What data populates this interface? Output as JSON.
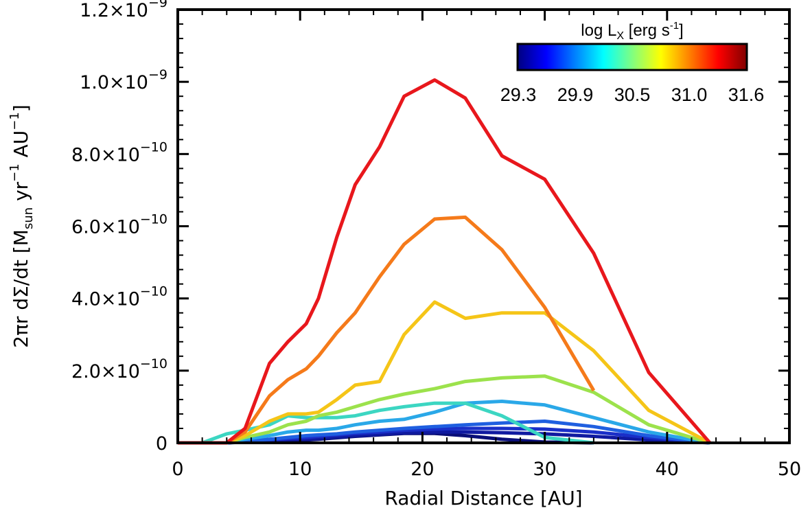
{
  "chart_data": {
    "type": "line",
    "xlabel": "Radial Distance [AU]",
    "ylabel": {
      "prefix": "2πr dΣ/dt [M",
      "sub": "sun",
      "mid": " yr",
      "sup1": "−1",
      "mid2": " AU",
      "sup2": "−1",
      "suffix": "]"
    },
    "xlim": [
      0,
      50
    ],
    "ylim": [
      0,
      1.2e-09
    ],
    "x_ticks": [
      {
        "value": 0,
        "label": "0"
      },
      {
        "value": 10,
        "label": "10"
      },
      {
        "value": 20,
        "label": "20"
      },
      {
        "value": 30,
        "label": "30"
      },
      {
        "value": 40,
        "label": "40"
      },
      {
        "value": 50,
        "label": "50"
      }
    ],
    "y_ticks": [
      {
        "value": 0,
        "mant": "0",
        "exp": ""
      },
      {
        "value": 2e-10,
        "mant": "2.0×10",
        "exp": "−10"
      },
      {
        "value": 4e-10,
        "mant": "4.0×10",
        "exp": "−10"
      },
      {
        "value": 6e-10,
        "mant": "6.0×10",
        "exp": "−10"
      },
      {
        "value": 8e-10,
        "mant": "8.0×10",
        "exp": "−10"
      },
      {
        "value": 1e-09,
        "mant": "1.0×10",
        "exp": "−9"
      },
      {
        "value": 1.2e-09,
        "mant": "1.2×10",
        "exp": "−9"
      }
    ],
    "colorbar": {
      "title_prefix": "log L",
      "title_sub": "X",
      "title_suffix": " [erg s",
      "title_sup": "-1",
      "title_end": "]",
      "tick_labels": [
        "29.3",
        "29.9",
        "30.5",
        "31.0",
        "31.6"
      ],
      "colors": [
        "#000080",
        "#0000ff",
        "#0080ff",
        "#00ffff",
        "#80ff80",
        "#ffff00",
        "#ff8000",
        "#ff0000",
        "#800000"
      ]
    },
    "series": [
      {
        "color": "#e8171c",
        "x": [
          0,
          2,
          4,
          5.5,
          7.5,
          9,
          10.5,
          11.5,
          13,
          14.5,
          16.5,
          18.5,
          21,
          23.5,
          26.5,
          30,
          34,
          38.5,
          43.5
        ],
        "y": [
          0,
          0,
          0,
          4e-11,
          2.2e-10,
          2.8e-10,
          3.3e-10,
          4e-10,
          5.7e-10,
          7.15e-10,
          8.2e-10,
          9.6e-10,
          1.005e-09,
          9.55e-10,
          7.95e-10,
          7.3e-10,
          5.25e-10,
          1.95e-10,
          0
        ]
      },
      {
        "color": "#f57a1a",
        "x": [
          0,
          2,
          4,
          5.5,
          7.5,
          9,
          10.5,
          11.5,
          13,
          14.5,
          16.5,
          18.5,
          21,
          23.5,
          26.5,
          30,
          34
        ],
        "y": [
          0,
          0,
          0,
          3e-11,
          1.3e-10,
          1.75e-10,
          2.05e-10,
          2.4e-10,
          3.05e-10,
          3.6e-10,
          4.6e-10,
          5.5e-10,
          6.2e-10,
          6.25e-10,
          5.35e-10,
          3.75e-10,
          1.45e-10
        ]
      },
      {
        "color": "#f5c518",
        "x": [
          0,
          2,
          4,
          5.5,
          7.5,
          9,
          10.5,
          11.5,
          13,
          14.5,
          16.5,
          18.5,
          21,
          23.5,
          26.5,
          30,
          34,
          38.5,
          43.5
        ],
        "y": [
          0,
          0,
          0,
          2e-11,
          6e-11,
          8e-11,
          8e-11,
          8.5e-11,
          1.2e-10,
          1.6e-10,
          1.7e-10,
          3e-10,
          3.9e-10,
          3.45e-10,
          3.6e-10,
          3.6e-10,
          2.55e-10,
          9e-11,
          0
        ]
      },
      {
        "color": "#9ce24c",
        "x": [
          0,
          2,
          4,
          5.5,
          7.5,
          9,
          10.5,
          11.5,
          13,
          14.5,
          16.5,
          18.5,
          21,
          23.5,
          26.5,
          30,
          34,
          38.5,
          43.5
        ],
        "y": [
          0,
          0,
          0,
          1.5e-11,
          3e-11,
          5e-11,
          6e-11,
          7.5e-11,
          8.5e-11,
          1e-10,
          1.2e-10,
          1.35e-10,
          1.5e-10,
          1.7e-10,
          1.8e-10,
          1.85e-10,
          1.4e-10,
          5e-11,
          0
        ]
      },
      {
        "color": "#3cd6c2",
        "x": [
          0,
          2,
          4,
          5.5,
          7.5,
          9,
          10.5,
          11.5,
          13,
          14.5,
          16.5,
          18.5,
          21,
          23.5,
          26.5,
          30,
          34
        ],
        "y": [
          0,
          0,
          2.5e-11,
          3.5e-11,
          5e-11,
          7.5e-11,
          7e-11,
          7e-11,
          7e-11,
          7.5e-11,
          9e-11,
          1e-10,
          1.1e-10,
          1.1e-10,
          7.5e-11,
          1.5e-11,
          0
        ]
      },
      {
        "color": "#2aa8e8",
        "x": [
          0,
          2,
          4,
          5.5,
          7.5,
          9,
          10.5,
          11.5,
          13,
          14.5,
          16.5,
          18.5,
          21,
          23.5,
          26.5,
          30,
          34,
          38.5,
          43.5
        ],
        "y": [
          0,
          0,
          0,
          1e-11,
          2e-11,
          3e-11,
          3.5e-11,
          3.5e-11,
          4e-11,
          5e-11,
          6e-11,
          6.5e-11,
          8.5e-11,
          1.1e-10,
          1.15e-10,
          1.05e-10,
          7e-11,
          3e-11,
          0
        ]
      },
      {
        "color": "#1f5fe0",
        "x": [
          0,
          2,
          4,
          5.5,
          7.5,
          9,
          10.5,
          11.5,
          13,
          14.5,
          16.5,
          18.5,
          21,
          23.5,
          26.5,
          30,
          34,
          38.5,
          43.5
        ],
        "y": [
          0,
          0,
          0,
          5e-12,
          1e-11,
          1.5e-11,
          2e-11,
          2.2e-11,
          2.5e-11,
          3e-11,
          3.5e-11,
          4e-11,
          4.5e-11,
          5e-11,
          5.5e-11,
          6e-11,
          4.5e-11,
          2e-11,
          0
        ]
      },
      {
        "color": "#1a2fc8",
        "x": [
          0,
          2,
          4,
          5.5,
          7.5,
          9,
          10.5,
          11.5,
          13,
          14.5,
          16.5,
          18.5,
          21,
          23.5,
          26.5,
          30,
          34,
          38.5,
          43.5
        ],
        "y": [
          0,
          0,
          0,
          4e-12,
          8e-12,
          1.2e-11,
          1.5e-11,
          1.8e-11,
          2.2e-11,
          2.6e-11,
          3e-11,
          3.5e-11,
          3.8e-11,
          4e-11,
          4e-11,
          3.8e-11,
          3e-11,
          1.5e-11,
          0
        ]
      },
      {
        "color": "#101aa0",
        "x": [
          0,
          2,
          4,
          5.5,
          7.5,
          9,
          10.5,
          11.5,
          13,
          14.5,
          16.5,
          18.5,
          21,
          23.5,
          26.5,
          30,
          34,
          38.5,
          43.5
        ],
        "y": [
          0,
          0,
          0,
          3e-12,
          6e-12,
          9e-12,
          1.1e-11,
          1.3e-11,
          1.6e-11,
          2e-11,
          2.4e-11,
          2.8e-11,
          3e-11,
          3e-11,
          2.8e-11,
          2.5e-11,
          1.8e-11,
          8e-12,
          0
        ]
      },
      {
        "color": "#0a0f78",
        "x": [
          0,
          2,
          4,
          5.5,
          7.5,
          9,
          10.5,
          11.5,
          13,
          14.5,
          16.5,
          18.5,
          21,
          23.5,
          26.5,
          30,
          34
        ],
        "y": [
          0,
          0,
          0,
          2e-12,
          4e-12,
          6e-12,
          8e-12,
          1e-11,
          1.4e-11,
          1.8e-11,
          2.2e-11,
          2.6e-11,
          2.6e-11,
          2e-11,
          1e-11,
          2e-12,
          0
        ]
      }
    ]
  }
}
